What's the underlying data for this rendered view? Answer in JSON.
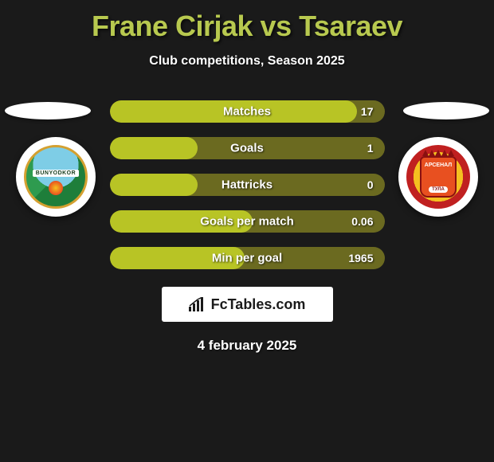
{
  "title": "Frane Cirjak vs Tsaraev",
  "subtitle": "Club competitions, Season 2025",
  "date": "4 february 2025",
  "brand": "FcTables.com",
  "colors": {
    "background": "#1a1a1a",
    "title": "#b8c94f",
    "pill_track": "#6b6a20",
    "pill_fill": "#b8c425",
    "text": "#ffffff"
  },
  "stats": [
    {
      "label": "Matches",
      "value": "17",
      "fill_pct": 90
    },
    {
      "label": "Goals",
      "value": "1",
      "fill_pct": 32
    },
    {
      "label": "Hattricks",
      "value": "0",
      "fill_pct": 32
    },
    {
      "label": "Goals per match",
      "value": "0.06",
      "fill_pct": 52
    },
    {
      "label": "Min per goal",
      "value": "1965",
      "fill_pct": 49
    }
  ],
  "crests": {
    "left": {
      "name": "BUNYODKOR"
    },
    "right": {
      "name": "АРСЕНАЛ",
      "sub": "ТУЛА"
    }
  }
}
